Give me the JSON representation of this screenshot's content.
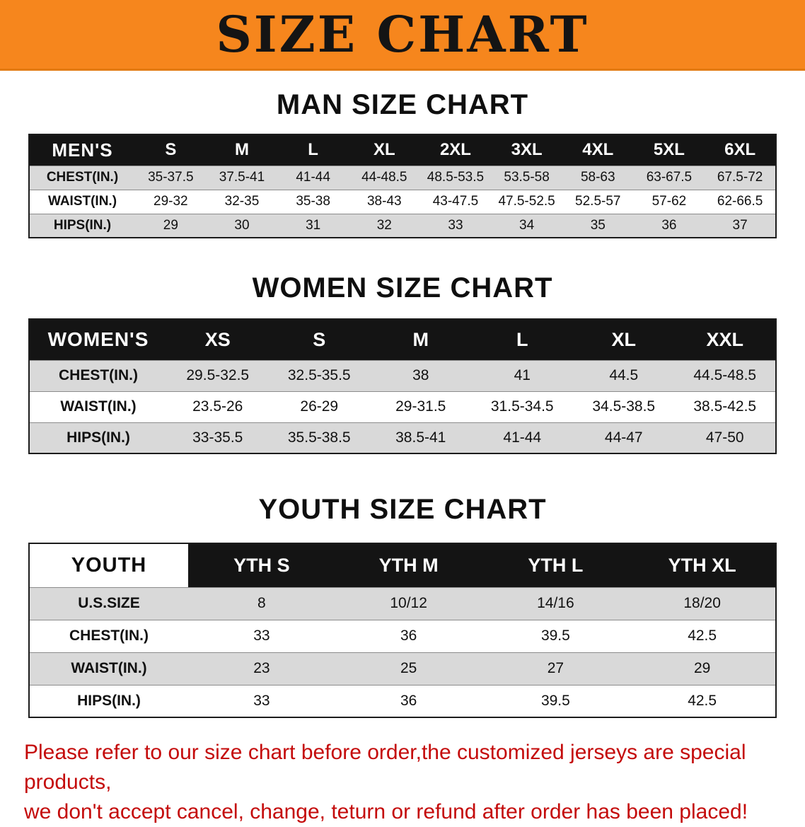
{
  "banner": {
    "title": "SIZE CHART",
    "bg_color": "#f6861d",
    "text_color": "#141414"
  },
  "header_bg_color": "#141414",
  "row_stripe_color": "#d9d9d9",
  "sections": [
    {
      "id": "men",
      "heading": "MAN SIZE CHART",
      "table": {
        "header": [
          "MEN'S",
          "S",
          "M",
          "L",
          "XL",
          "2XL",
          "3XL",
          "4XL",
          "5XL",
          "6XL"
        ],
        "rows": [
          [
            "CHEST(IN.)",
            "35-37.5",
            "37.5-41",
            "41-44",
            "44-48.5",
            "48.5-53.5",
            "53.5-58",
            "58-63",
            "63-67.5",
            "67.5-72"
          ],
          [
            "WAIST(IN.)",
            "29-32",
            "32-35",
            "35-38",
            "38-43",
            "43-47.5",
            "47.5-52.5",
            "52.5-57",
            "57-62",
            "62-66.5"
          ],
          [
            "HIPS(IN.)",
            "29",
            "30",
            "31",
            "32",
            "33",
            "34",
            "35",
            "36",
            "37"
          ]
        ]
      }
    },
    {
      "id": "women",
      "heading": "WOMEN SIZE CHART",
      "table": {
        "header": [
          "WOMEN'S",
          "XS",
          "S",
          "M",
          "L",
          "XL",
          "XXL"
        ],
        "rows": [
          [
            "CHEST(IN.)",
            "29.5-32.5",
            "32.5-35.5",
            "38",
            "41",
            "44.5",
            "44.5-48.5"
          ],
          [
            "WAIST(IN.)",
            "23.5-26",
            "26-29",
            "29-31.5",
            "31.5-34.5",
            "34.5-38.5",
            "38.5-42.5"
          ],
          [
            "HIPS(IN.)",
            "33-35.5",
            "35.5-38.5",
            "38.5-41",
            "41-44",
            "44-47",
            "47-50"
          ]
        ]
      }
    },
    {
      "id": "youth",
      "heading": "YOUTH SIZE CHART",
      "table": {
        "header": [
          "YOUTH",
          "YTH S",
          "YTH M",
          "YTH L",
          "YTH XL"
        ],
        "rows": [
          [
            "U.S.SIZE",
            "8",
            "10/12",
            "14/16",
            "18/20"
          ],
          [
            "CHEST(IN.)",
            "33",
            "36",
            "39.5",
            "42.5"
          ],
          [
            "WAIST(IN.)",
            "23",
            "25",
            "27",
            "29"
          ],
          [
            "HIPS(IN.)",
            "33",
            "36",
            "39.5",
            "42.5"
          ]
        ]
      }
    }
  ],
  "footer": {
    "line1": "Please refer to our size chart before order,the customized jerseys are special products,",
    "line2": "we don't accept cancel, change, teturn or refund after order has been placed!",
    "text_color": "#c40a0a"
  }
}
